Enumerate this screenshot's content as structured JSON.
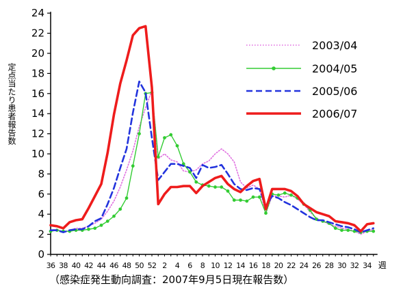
{
  "chart_data": {
    "type": "line",
    "title": "",
    "ylabel": "定点当たり患者報告数",
    "xlabel": "週",
    "ylim": [
      0,
      24
    ],
    "y_ticks": [
      0,
      2,
      4,
      6,
      8,
      10,
      12,
      14,
      16,
      18,
      20,
      22,
      24
    ],
    "x_tick_labels": [
      "36",
      "38",
      "40",
      "42",
      "44",
      "46",
      "48",
      "50",
      "52",
      "2",
      "4",
      "6",
      "8",
      "10",
      "12",
      "14",
      "16",
      "18",
      "20",
      "22",
      "24",
      "26",
      "28",
      "30",
      "32",
      "34"
    ],
    "weeks": [
      36,
      37,
      38,
      39,
      40,
      41,
      42,
      43,
      44,
      45,
      46,
      47,
      48,
      49,
      50,
      51,
      52,
      1,
      2,
      3,
      4,
      5,
      6,
      7,
      8,
      9,
      10,
      11,
      12,
      13,
      14,
      15,
      16,
      17,
      18,
      19,
      20,
      21,
      22,
      23,
      24,
      25,
      26,
      27,
      28,
      29,
      30,
      31,
      32,
      33,
      34,
      35
    ],
    "legend_position": "top-right",
    "series": [
      {
        "name": "2003/04",
        "color": "#e070e0",
        "style": "dotted",
        "values": [
          2.4,
          2.5,
          2.2,
          2.4,
          2.6,
          2.6,
          2.8,
          3.1,
          3.5,
          4.3,
          5.3,
          6.7,
          8.4,
          10.3,
          12.7,
          14.6,
          16.3,
          9.5,
          10.0,
          9.4,
          9.2,
          8.3,
          8.2,
          8.4,
          9.0,
          9.3,
          10.0,
          10.5,
          10.0,
          9.2,
          7.2,
          6.6,
          6.9,
          6.5,
          4.1,
          5.8,
          5.8,
          5.7,
          5.9,
          5.5,
          5.0,
          4.2,
          3.6,
          3.3,
          3.0,
          2.8,
          2.6,
          2.5,
          2.3,
          2.0,
          2.3,
          2.5
        ]
      },
      {
        "name": "2004/05",
        "color": "#33cc33",
        "style": "solid-marker",
        "values": [
          2.3,
          2.4,
          2.3,
          2.3,
          2.4,
          2.4,
          2.5,
          2.6,
          2.9,
          3.3,
          3.8,
          4.5,
          5.6,
          8.8,
          12.0,
          16.0,
          16.1,
          9.7,
          11.6,
          11.9,
          10.8,
          9.0,
          8.2,
          7.2,
          6.9,
          6.8,
          6.7,
          6.7,
          6.3,
          5.4,
          5.4,
          5.3,
          5.7,
          5.7,
          4.1,
          6.0,
          5.9,
          6.1,
          5.9,
          5.6,
          5.0,
          4.4,
          3.5,
          3.3,
          3.1,
          2.6,
          2.4,
          2.4,
          2.3,
          2.2,
          2.3,
          2.3
        ]
      },
      {
        "name": "2005/06",
        "color": "#2233dd",
        "style": "dashed",
        "values": [
          2.4,
          2.4,
          2.2,
          2.4,
          2.5,
          2.5,
          2.8,
          3.3,
          3.6,
          5.0,
          6.6,
          8.6,
          10.5,
          14.1,
          17.2,
          16.1,
          11.6,
          7.4,
          8.2,
          9.0,
          9.0,
          8.8,
          8.6,
          7.6,
          8.9,
          8.6,
          8.7,
          8.9,
          8.0,
          7.0,
          6.5,
          6.4,
          6.6,
          6.5,
          4.8,
          5.8,
          5.6,
          5.2,
          4.9,
          4.5,
          4.1,
          3.7,
          3.4,
          3.4,
          3.2,
          3.0,
          2.8,
          2.7,
          2.5,
          2.2,
          2.4,
          2.6
        ]
      },
      {
        "name": "2006/07",
        "color": "#ee1c1c",
        "style": "solid-thick",
        "values": [
          2.9,
          2.8,
          2.6,
          3.2,
          3.4,
          3.5,
          4.6,
          5.8,
          7.0,
          10.1,
          13.9,
          17.0,
          19.3,
          21.8,
          22.5,
          22.7,
          16.6,
          5.0,
          6.0,
          6.7,
          6.7,
          6.8,
          6.8,
          6.1,
          6.8,
          7.2,
          7.6,
          7.8,
          7.0,
          6.5,
          6.2,
          6.8,
          7.3,
          7.5,
          4.5,
          6.5,
          6.5,
          6.5,
          6.3,
          5.8,
          5.0,
          4.6,
          4.2,
          4.0,
          3.8,
          3.3,
          3.2,
          3.1,
          2.9,
          2.3,
          3.0,
          3.1
        ]
      }
    ]
  },
  "source_note": "（感染症発生動向調査：2007年9月5日現在報告数）"
}
